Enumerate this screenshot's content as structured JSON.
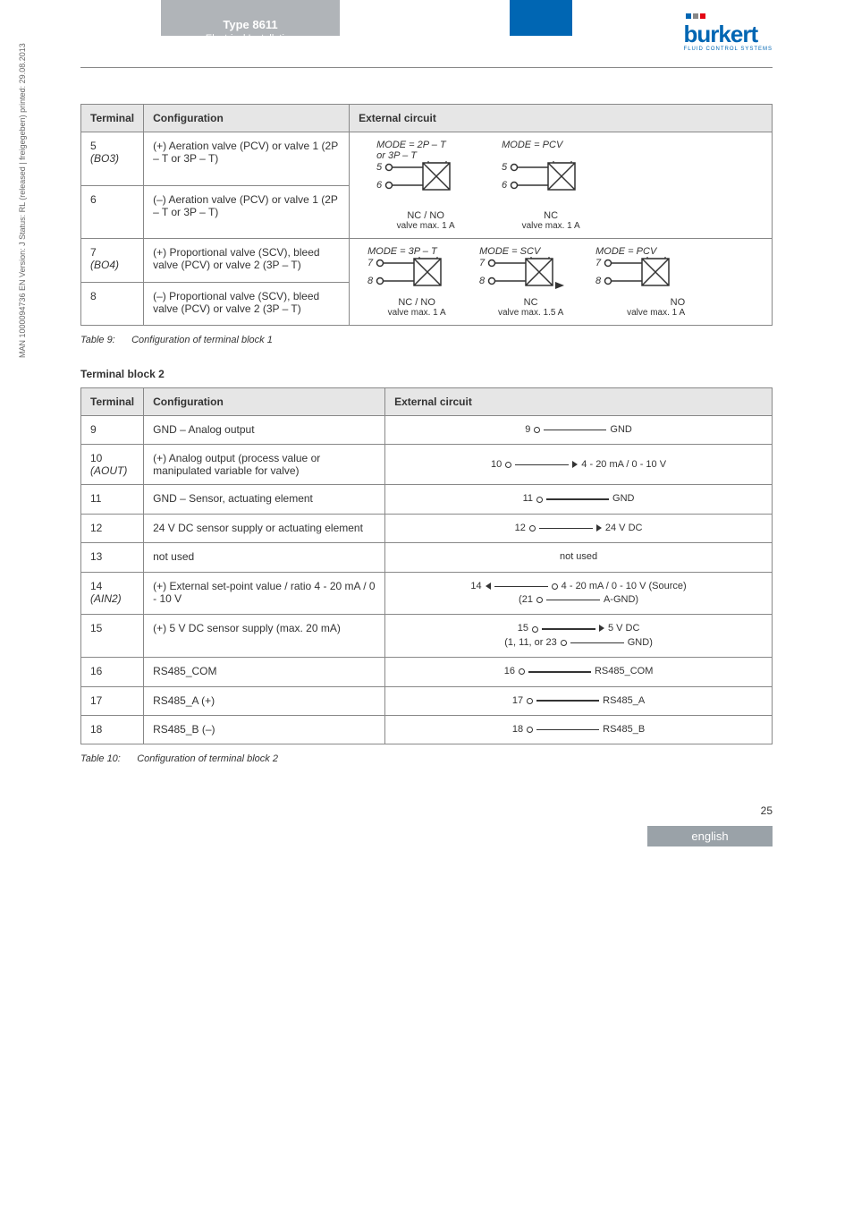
{
  "header": {
    "title": "Type 8611",
    "subtitle": "Electrical Installation"
  },
  "logo": {
    "name": "burkert",
    "tagline": "FLUID CONTROL SYSTEMS",
    "bar_colors": [
      "#0066b3",
      "#888",
      "#e30613"
    ]
  },
  "table1": {
    "headers": [
      "Terminal",
      "Configuration",
      "External circuit"
    ],
    "rows": [
      {
        "terminal": "5",
        "terminal_sub": "(BO3)",
        "config": "(+) Aeration valve (PCV) or valve 1 (2P – T or 3P – T)"
      },
      {
        "terminal": "6",
        "config": "(–) Aeration valve (PCV) or valve 1 (2P – T or 3P – T)"
      },
      {
        "terminal": "7",
        "terminal_sub": "(BO4)",
        "config": "(+) Proportional valve (SCV), bleed valve (PCV) or valve 2 (3P – T)"
      },
      {
        "terminal": "8",
        "config": "(–) Proportional valve (SCV), bleed valve (PCV) or valve 2 (3P – T)"
      }
    ],
    "ext1": {
      "mode_a": "MODE = 2P – T",
      "mode_a2": "or 3P – T",
      "pins_a": [
        "5",
        "6"
      ],
      "label_a": "NC / NO",
      "cap_a": "valve max. 1 A",
      "mode_b": "MODE = PCV",
      "pins_b": [
        "5",
        "6"
      ],
      "label_b": "NC",
      "cap_b": "valve max. 1 A"
    },
    "ext2": {
      "mode_a": "MODE = 3P – T",
      "pins_a": [
        "7",
        "8"
      ],
      "label_a": "NC / NO",
      "cap_a": "valve max. 1 A",
      "mode_b": "MODE = SCV",
      "pins_b": [
        "7",
        "8"
      ],
      "label_b": "NC",
      "cap_b": "valve max. 1.5 A",
      "mode_c": "MODE = PCV",
      "pins_c": [
        "7",
        "8"
      ],
      "label_c": "NO",
      "cap_c": "valve max. 1 A"
    }
  },
  "caption1": {
    "label": "Table 9:",
    "text": "Configuration of terminal block 1"
  },
  "section2_title": "Terminal block 2",
  "table2": {
    "headers": [
      "Terminal",
      "Configuration",
      "External circuit"
    ],
    "rows": [
      {
        "terminal": "9",
        "config": "GND – Analog output",
        "ext_pin": "9",
        "ext_label": "GND",
        "type": "line"
      },
      {
        "terminal": "10",
        "terminal_sub": "(AOUT)",
        "config": "(+) Analog output (process value or manipulated variable for valve)",
        "ext_pin": "10",
        "ext_label": "4 - 20 mA / 0 - 10 V",
        "type": "arrow-r"
      },
      {
        "terminal": "11",
        "config": "GND – Sensor, actuating element",
        "ext_pin": "11",
        "ext_label": "GND",
        "type": "line"
      },
      {
        "terminal": "12",
        "config": "24 V DC sensor supply or actuating element",
        "ext_pin": "12",
        "ext_label": "24 V DC",
        "type": "arrow-r"
      },
      {
        "terminal": "13",
        "config": "not used",
        "ext_label": "not used",
        "type": "text"
      },
      {
        "terminal": "14",
        "terminal_sub": "(AIN2)",
        "config": "(+) External set-point value / ratio 4 - 20 mA / 0 - 10 V",
        "ext_pin": "14",
        "ext_label": "4 - 20 mA / 0 - 10 V (Source)",
        "ext_pin2": "(21",
        "ext_label2": "A-GND)",
        "type": "arrow-l-double"
      },
      {
        "terminal": "15",
        "config": "(+) 5 V DC sensor supply (max. 20 mA)",
        "ext_pin": "15",
        "ext_label": "5 V DC",
        "ext_pin2": "(1, 11, or 23",
        "ext_label2": "GND)",
        "type": "arrow-r-double"
      },
      {
        "terminal": "16",
        "config": "RS485_COM",
        "ext_pin": "16",
        "ext_label": "RS485_COM",
        "type": "line"
      },
      {
        "terminal": "17",
        "config": "RS485_A (+)",
        "ext_pin": "17",
        "ext_label": "RS485_A",
        "type": "line"
      },
      {
        "terminal": "18",
        "config": "RS485_B (–)",
        "ext_pin": "18",
        "ext_label": "RS485_B",
        "type": "line"
      }
    ]
  },
  "caption2": {
    "label": "Table 10:",
    "text": "Configuration of terminal block 2"
  },
  "sidetext": "MAN 1000094736 EN Version: J Status: RL (released | freigegeben) printed: 29.08.2013",
  "page_number": "25",
  "footer_lang": "english"
}
